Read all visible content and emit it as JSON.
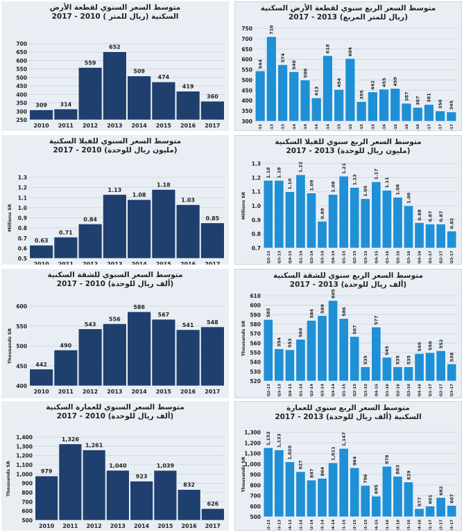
{
  "charts": [
    {
      "id": "land-annual",
      "type": "bar",
      "title": "متوسط السعر السنوي لقطعة الأرض\nالسكنية (ريال للمتر ) 2010 - 2017",
      "ylabel": "",
      "ylim": [
        250,
        700
      ],
      "ticks": [
        250,
        300,
        350,
        400,
        450,
        500,
        550,
        600,
        650,
        700
      ],
      "categories": [
        "2010",
        "2011",
        "2012",
        "2013",
        "2014",
        "2015",
        "2016",
        "2017"
      ],
      "values": [
        309,
        314,
        559,
        652,
        509,
        474,
        419,
        360
      ],
      "labels": [
        "309",
        "314",
        "559",
        "652",
        "509",
        "474",
        "419",
        "360"
      ]
    },
    {
      "id": "land-quarterly",
      "type": "bar",
      "title": "متوسط السعر الربع سنوي لقطعة الأرض السكنية\n(ريال للمتر المربع) 2013 - 2017",
      "ylabel": "",
      "ylim": [
        300,
        750
      ],
      "ticks": [
        300,
        350,
        400,
        450,
        500,
        550,
        600,
        650,
        700,
        750
      ],
      "categories": [
        "Q2-13",
        "Q3-13",
        "Q4-13",
        "Q1-14",
        "Q2-14",
        "Q3-14",
        "Q4-14",
        "Q1-15",
        "Q2-15",
        "Q3-15",
        "Q4-15",
        "Q1-16",
        "Q2-16",
        "Q3-16",
        "Q4-16",
        "Q1-17",
        "Q2-17",
        "Q3-17"
      ],
      "values": [
        544,
        710,
        574,
        540,
        500,
        413,
        618,
        454,
        604,
        395,
        442,
        455,
        459,
        387,
        367,
        381,
        350,
        345
      ],
      "labels": [
        "544",
        "710",
        "574",
        "540",
        "500",
        "413",
        "618",
        "454",
        "604",
        "395",
        "442",
        "455",
        "459",
        "387",
        "367",
        "381",
        "350",
        "345"
      ]
    },
    {
      "id": "villa-annual",
      "type": "bar",
      "title": "متوسط السعر السنوي للفيلا السكنية\n(مليون ريال للوحدة) 2010 - 2017",
      "ylabel": "Millions SR",
      "ylim": [
        0.5,
        1.3
      ],
      "ticks": [
        0.5,
        0.6,
        0.7,
        0.8,
        0.9,
        1.0,
        1.1,
        1.2,
        1.3
      ],
      "tick_labels": [
        "0.5",
        "0.6",
        "0.7",
        "0.8",
        "0.9",
        "1.0",
        "1.1",
        "1.2",
        "1.3"
      ],
      "categories": [
        "2010",
        "2011",
        "2012",
        "2013",
        "2014",
        "2015",
        "2016",
        "2017"
      ],
      "values": [
        0.63,
        0.71,
        0.84,
        1.13,
        1.08,
        1.18,
        1.03,
        0.85
      ],
      "labels": [
        "0.63",
        "0.71",
        "0.84",
        "1.13",
        "1.08",
        "1.18",
        "1.03",
        "0.85"
      ]
    },
    {
      "id": "villa-quarterly",
      "type": "bar",
      "title": "متوسط السعر الربع سنوي للفيلا السكنية\n(مليون ريال للوحدة) 2013 - 2017",
      "ylabel": "Millions SR",
      "ylim": [
        0.7,
        1.3
      ],
      "ticks": [
        0.7,
        0.8,
        0.9,
        1.0,
        1.1,
        1.2,
        1.3
      ],
      "tick_labels": [
        "0.7",
        "0.8",
        "0.9",
        "1.0",
        "1.1",
        "1.2",
        "1.3"
      ],
      "categories": [
        "Q2-13",
        "Q3-13",
        "Q4-13",
        "Q1-14",
        "Q2-14",
        "Q3-14",
        "Q4-14",
        "Q1-15",
        "Q2-15",
        "Q3-15",
        "Q4-15",
        "Q1-16",
        "Q2-16",
        "Q3-16",
        "Q4-16",
        "Q1-17",
        "Q2-17",
        "Q3-17"
      ],
      "values": [
        1.18,
        1.18,
        1.1,
        1.22,
        1.09,
        0.89,
        1.08,
        1.21,
        1.13,
        1.05,
        1.17,
        1.11,
        1.06,
        1.0,
        0.88,
        0.87,
        0.87,
        0.82
      ],
      "labels": [
        "1.18",
        "1.18",
        "1.10",
        "1.22",
        "1.09",
        "0.89",
        "1.08",
        "1.21",
        "1.13",
        "1.05",
        "1.17",
        "1.11",
        "1.06",
        "1.00",
        "0.88",
        "0.87",
        "0.87",
        "0.82"
      ]
    },
    {
      "id": "apartment-annual",
      "type": "bar",
      "title": "متوسط السعر السنوي للشقة السكنية\n(ألف ريال للوحدة) 2010 - 2017",
      "ylabel": "Thousands SR",
      "ylim": [
        400,
        600
      ],
      "ticks": [
        400,
        450,
        500,
        550,
        600
      ],
      "categories": [
        "2010",
        "2011",
        "2012",
        "2013",
        "2014",
        "2015",
        "2016",
        "2017"
      ],
      "values": [
        442,
        490,
        543,
        556,
        586,
        567,
        541,
        548
      ],
      "labels": [
        "442",
        "490",
        "543",
        "556",
        "586",
        "567",
        "541",
        "548"
      ]
    },
    {
      "id": "apartment-quarterly",
      "type": "bar",
      "title": "متوسط السعر الربع سنوي للشقة السكنية\n(ألف ريال للوحدة) 2013 - 2017",
      "ylabel": "Thousands SR",
      "ylim": [
        520,
        610
      ],
      "ticks": [
        520,
        530,
        540,
        550,
        560,
        570,
        580,
        590,
        600,
        610
      ],
      "categories": [
        "Q2-13",
        "Q3-13",
        "Q4-13",
        "Q1-14",
        "Q2-14",
        "Q3-14",
        "Q4-14",
        "Q1-15",
        "Q2-15",
        "Q3-15",
        "Q4-15",
        "Q1-16",
        "Q2-16",
        "Q3-16",
        "Q4-16",
        "Q1-17",
        "Q2-17",
        "Q3-17"
      ],
      "values": [
        585,
        554,
        553,
        564,
        584,
        589,
        605,
        586,
        567,
        535,
        577,
        545,
        535,
        535,
        549,
        550,
        552,
        538
      ],
      "labels": [
        "585",
        "554",
        "553",
        "564",
        "584",
        "589",
        "605",
        "586",
        "567",
        "535",
        "577",
        "545",
        "535",
        "535",
        "549",
        "550",
        "552",
        "538"
      ]
    },
    {
      "id": "building-annual",
      "type": "bar",
      "title": "متوسط السعر السنوي للعمارة السكنية\n(ألف ريال للوحدة) 2010 - 2017",
      "ylabel": "Thousands SR",
      "ylim": [
        500,
        1400
      ],
      "ticks": [
        500,
        600,
        700,
        800,
        900,
        1000,
        1100,
        1200,
        1300,
        1400
      ],
      "tick_labels": [
        "500",
        "600",
        "700",
        "800",
        "900",
        "1,000",
        "1,100",
        "1,200",
        "1,300",
        "1,400"
      ],
      "categories": [
        "2010",
        "2011",
        "2012",
        "2013",
        "2014",
        "2015",
        "2016",
        "2017"
      ],
      "values": [
        979,
        1326,
        1261,
        1040,
        923,
        1039,
        832,
        626
      ],
      "labels": [
        "979",
        "1,326",
        "1,261",
        "1,040",
        "923",
        "1,039",
        "832",
        "626"
      ]
    },
    {
      "id": "building-quarterly",
      "type": "bar",
      "title": "متوسط السعر الربع سنوي للعمارة\nالسكنية (ألف ريال للوحدة) 2013 - 2017",
      "ylabel": "Thousands SR",
      "ylim": [
        500,
        1300
      ],
      "ticks": [
        500,
        600,
        700,
        800,
        900,
        1000,
        1100,
        1200,
        1300
      ],
      "tick_labels": [
        "500",
        "600",
        "700",
        "800",
        "900",
        "1,000",
        "1,100",
        "1,200",
        "1,300"
      ],
      "categories": [
        "Q2-13",
        "Q3-13",
        "Q4-13",
        "Q1-14",
        "Q2-14",
        "Q3-14",
        "Q4-14",
        "Q1-15",
        "Q2-15",
        "Q3-15",
        "Q4-15",
        "Q1-16",
        "Q2-16",
        "Q3-16",
        "Q4-16",
        "Q1-17",
        "Q2-17",
        "Q3-17"
      ],
      "values": [
        1153,
        1133,
        1020,
        927,
        847,
        864,
        1011,
        1147,
        964,
        796,
        695,
        978,
        883,
        829,
        577,
        601,
        682,
        607
      ],
      "labels": [
        "1,153",
        "1,133",
        "1,020",
        "927",
        "847",
        "864",
        "1,011",
        "1,147",
        "964",
        "796",
        "695",
        "978",
        "883",
        "829",
        "577",
        "601",
        "682",
        "607"
      ]
    }
  ],
  "colors": {
    "annual_bar": "#1f3f6e",
    "quarterly_bar": "#1f8fd6",
    "grid": "#c9d3de",
    "text": "#222222"
  }
}
